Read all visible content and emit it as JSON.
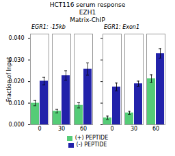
{
  "title": [
    "HCT116 serum response",
    "EZH1",
    "Matrix-ChIP"
  ],
  "chart_data": [
    {
      "type": "bar",
      "title": "EGR1: -15kb",
      "categories": [
        "0",
        "30",
        "60"
      ],
      "series": [
        {
          "name": "(+) PEPTIDE",
          "color": "#55cc77",
          "values": [
            0.01,
            0.0063,
            0.009
          ],
          "errors": [
            0.0012,
            0.0008,
            0.0012
          ]
        },
        {
          "name": "(-) PEPTIDE",
          "color": "#2222aa",
          "values": [
            0.0202,
            0.0228,
            0.0258
          ],
          "errors": [
            0.0018,
            0.0022,
            0.0028
          ]
        }
      ],
      "ylabel": "Fraction of Input",
      "ylim": [
        0.0,
        0.042
      ],
      "yticks": [
        {
          "value": 0.0,
          "label": "0.000"
        },
        {
          "value": 0.01,
          "label": "0.010"
        },
        {
          "value": 0.02,
          "label": "0.020"
        },
        {
          "value": 0.03,
          "label": "0.030"
        },
        {
          "value": 0.04,
          "label": "0.040"
        }
      ],
      "legend": "bottom"
    },
    {
      "type": "bar",
      "title": "EGR1: Exon1",
      "categories": [
        "0",
        "30",
        "60"
      ],
      "series": [
        {
          "name": "(+) PEPTIDE",
          "color": "#55cc77",
          "values": [
            0.0032,
            0.0055,
            0.0213
          ],
          "errors": [
            0.0008,
            0.0007,
            0.0018
          ]
        },
        {
          "name": "(-) PEPTIDE",
          "color": "#2222aa",
          "values": [
            0.0175,
            0.019,
            0.033
          ],
          "errors": [
            0.0018,
            0.0012,
            0.0022
          ]
        }
      ],
      "ylim": [
        0.0,
        0.042
      ],
      "yticks": [
        0.0,
        0.01,
        0.02,
        0.03,
        0.04
      ],
      "tick_labels": "x"
    }
  ]
}
